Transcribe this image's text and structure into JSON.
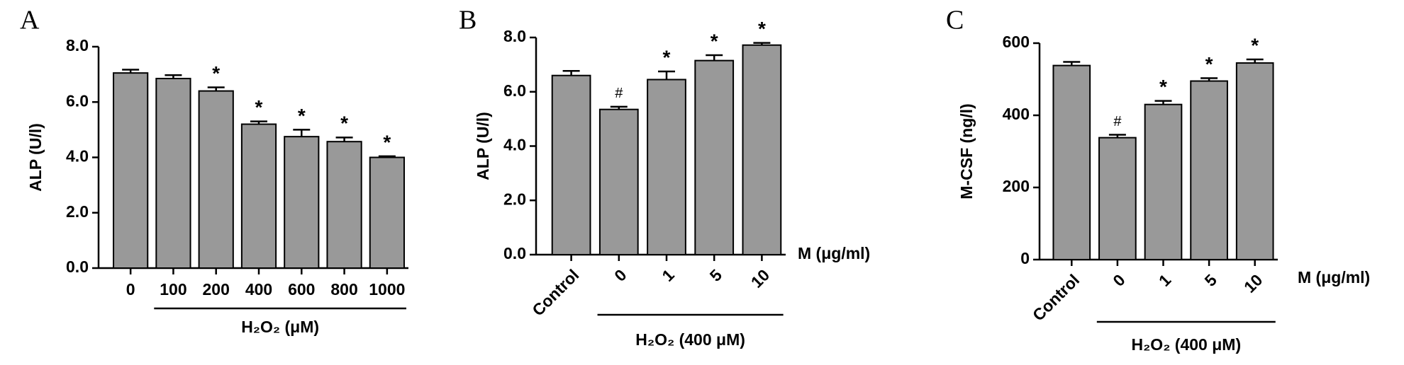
{
  "chart_data": [
    {
      "type": "bar",
      "panel": "A",
      "y_label": "ALP (U/l)",
      "group_label": "H₂O₂ (μM)",
      "categories": [
        "0",
        "100",
        "200",
        "400",
        "600",
        "800",
        "1000"
      ],
      "values": [
        7.05,
        6.85,
        6.4,
        5.2,
        4.75,
        4.57,
        4.0
      ],
      "errors": [
        0.12,
        0.12,
        0.13,
        0.1,
        0.25,
        0.15,
        0.04
      ],
      "annotations": [
        null,
        null,
        "*",
        "*",
        "*",
        "*",
        "*"
      ],
      "color": "#999999",
      "ylim": [
        0,
        8
      ],
      "yticks": [
        {
          "value": 0,
          "label": "0.0"
        },
        {
          "value": 2,
          "label": "2.0"
        },
        {
          "value": 4,
          "label": "4.0"
        },
        {
          "value": 6,
          "label": "6.0"
        },
        {
          "value": 8,
          "label": "8.0"
        }
      ]
    },
    {
      "type": "bar",
      "panel": "B",
      "y_label": "ALP (U/l)",
      "group_label": "H₂O₂ (400 μM)",
      "x_label": "M (μg/ml)",
      "categories": [
        "Control",
        "0",
        "1",
        "5",
        "10"
      ],
      "values": [
        6.6,
        5.35,
        6.45,
        7.15,
        7.72
      ],
      "errors": [
        0.17,
        0.1,
        0.3,
        0.2,
        0.08
      ],
      "annotations": [
        null,
        "#",
        "*",
        "*",
        "*"
      ],
      "color": "#999999",
      "ylim": [
        0,
        8
      ],
      "yticks": [
        {
          "value": 0,
          "label": "0.0"
        },
        {
          "value": 2,
          "label": "2.0"
        },
        {
          "value": 4,
          "label": "4.0"
        },
        {
          "value": 6,
          "label": "6.0"
        },
        {
          "value": 8,
          "label": "8.0"
        }
      ]
    },
    {
      "type": "bar",
      "panel": "C",
      "y_label": "M-CSF (ng/l)",
      "group_label": "H₂O₂ (400 μM)",
      "x_label": "M (μg/ml)",
      "categories": [
        "Control",
        "0",
        "1",
        "5",
        "10"
      ],
      "values": [
        538,
        338,
        430,
        495,
        545
      ],
      "errors": [
        10,
        8,
        10,
        8,
        10
      ],
      "annotations": [
        null,
        "#",
        "*",
        "*",
        "*"
      ],
      "color": "#999999",
      "ylim": [
        0,
        600
      ],
      "yticks": [
        0,
        200,
        400,
        600
      ]
    }
  ]
}
